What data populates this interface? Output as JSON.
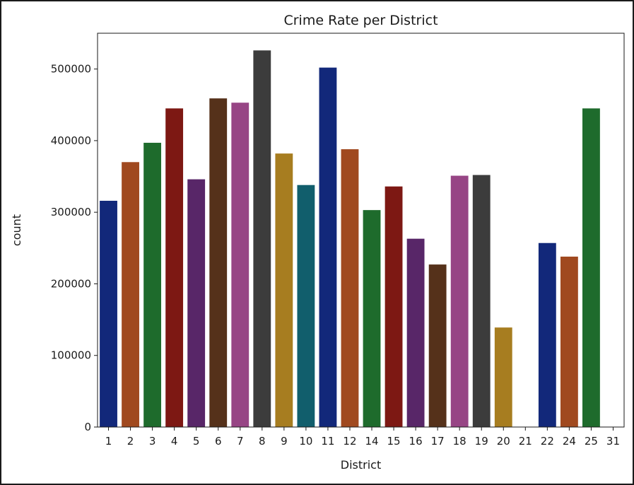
{
  "chart_data": {
    "type": "bar",
    "title": "Crime Rate per District",
    "xlabel": "District",
    "ylabel": "count",
    "ylim": [
      0,
      550000
    ],
    "yticks": [
      0,
      100000,
      200000,
      300000,
      400000,
      500000
    ],
    "grid": false,
    "legend": "none",
    "categories": [
      "1",
      "2",
      "3",
      "4",
      "5",
      "6",
      "7",
      "8",
      "9",
      "10",
      "11",
      "12",
      "14",
      "15",
      "16",
      "17",
      "18",
      "19",
      "20",
      "21",
      "22",
      "24",
      "25",
      "31"
    ],
    "values": [
      316000,
      370000,
      397000,
      445000,
      346000,
      459000,
      453000,
      526000,
      382000,
      338000,
      502000,
      388000,
      303000,
      336000,
      263000,
      227000,
      351000,
      352000,
      139000,
      0,
      257000,
      238000,
      445000,
      0
    ],
    "colors": [
      "#12287a",
      "#a0491f",
      "#1e6b2c",
      "#7d1813",
      "#582668",
      "#55311a",
      "#974585",
      "#3c3c3c",
      "#a77d20",
      "#115e6c",
      "#12287a",
      "#a0491f",
      "#1e6b2c",
      "#7d1813",
      "#582668",
      "#55311a",
      "#974585",
      "#3c3c3c",
      "#a77d20",
      "#115e6c",
      "#12287a",
      "#a0491f",
      "#1e6b2c",
      "#7d1813"
    ]
  }
}
